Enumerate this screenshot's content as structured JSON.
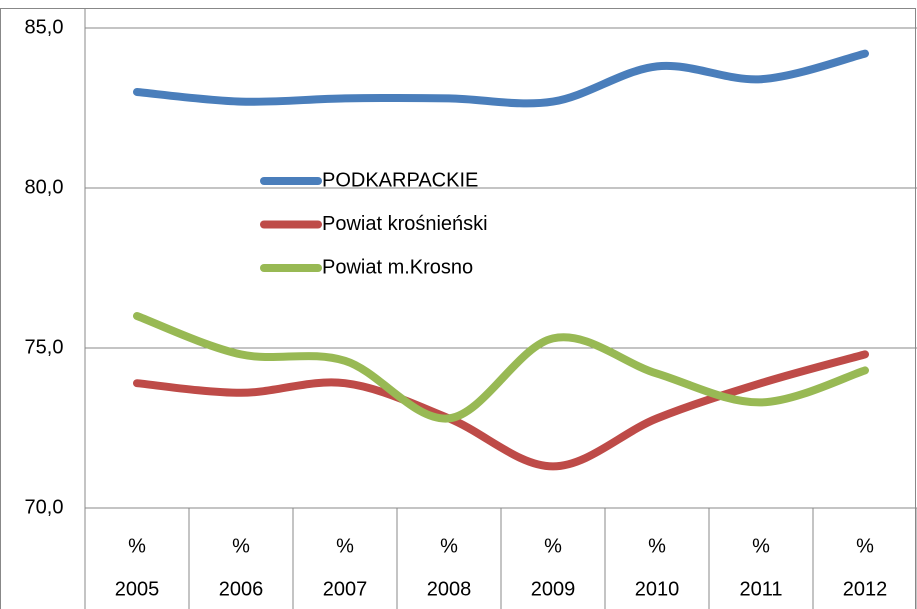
{
  "chart_data": {
    "type": "line",
    "categories": [
      "2005",
      "2006",
      "2007",
      "2008",
      "2009",
      "2010",
      "2011",
      "2012"
    ],
    "category_units": [
      "%",
      "%",
      "%",
      "%",
      "%",
      "%",
      "%",
      "%"
    ],
    "series": [
      {
        "name": "PODKARPACKIE",
        "color": "#4a7ebb",
        "values": [
          83.0,
          82.7,
          82.8,
          82.8,
          82.7,
          83.8,
          83.4,
          84.2
        ]
      },
      {
        "name": "Powiat krośnieński",
        "color": "#be4b48",
        "values": [
          73.9,
          73.6,
          73.9,
          72.8,
          71.3,
          72.8,
          73.9,
          74.8
        ]
      },
      {
        "name": "Powiat m.Krosno",
        "color": "#98b954",
        "values": [
          76.0,
          74.8,
          74.6,
          72.8,
          75.3,
          74.2,
          73.3,
          74.3
        ]
      }
    ],
    "ylim": [
      70,
      85
    ],
    "yticks": [
      {
        "value": 70,
        "label": "70,0"
      },
      {
        "value": 75,
        "label": "75,0"
      },
      {
        "value": 80,
        "label": "80,0"
      },
      {
        "value": 85,
        "label": "85,0"
      }
    ],
    "grid": true,
    "smooth": true
  }
}
